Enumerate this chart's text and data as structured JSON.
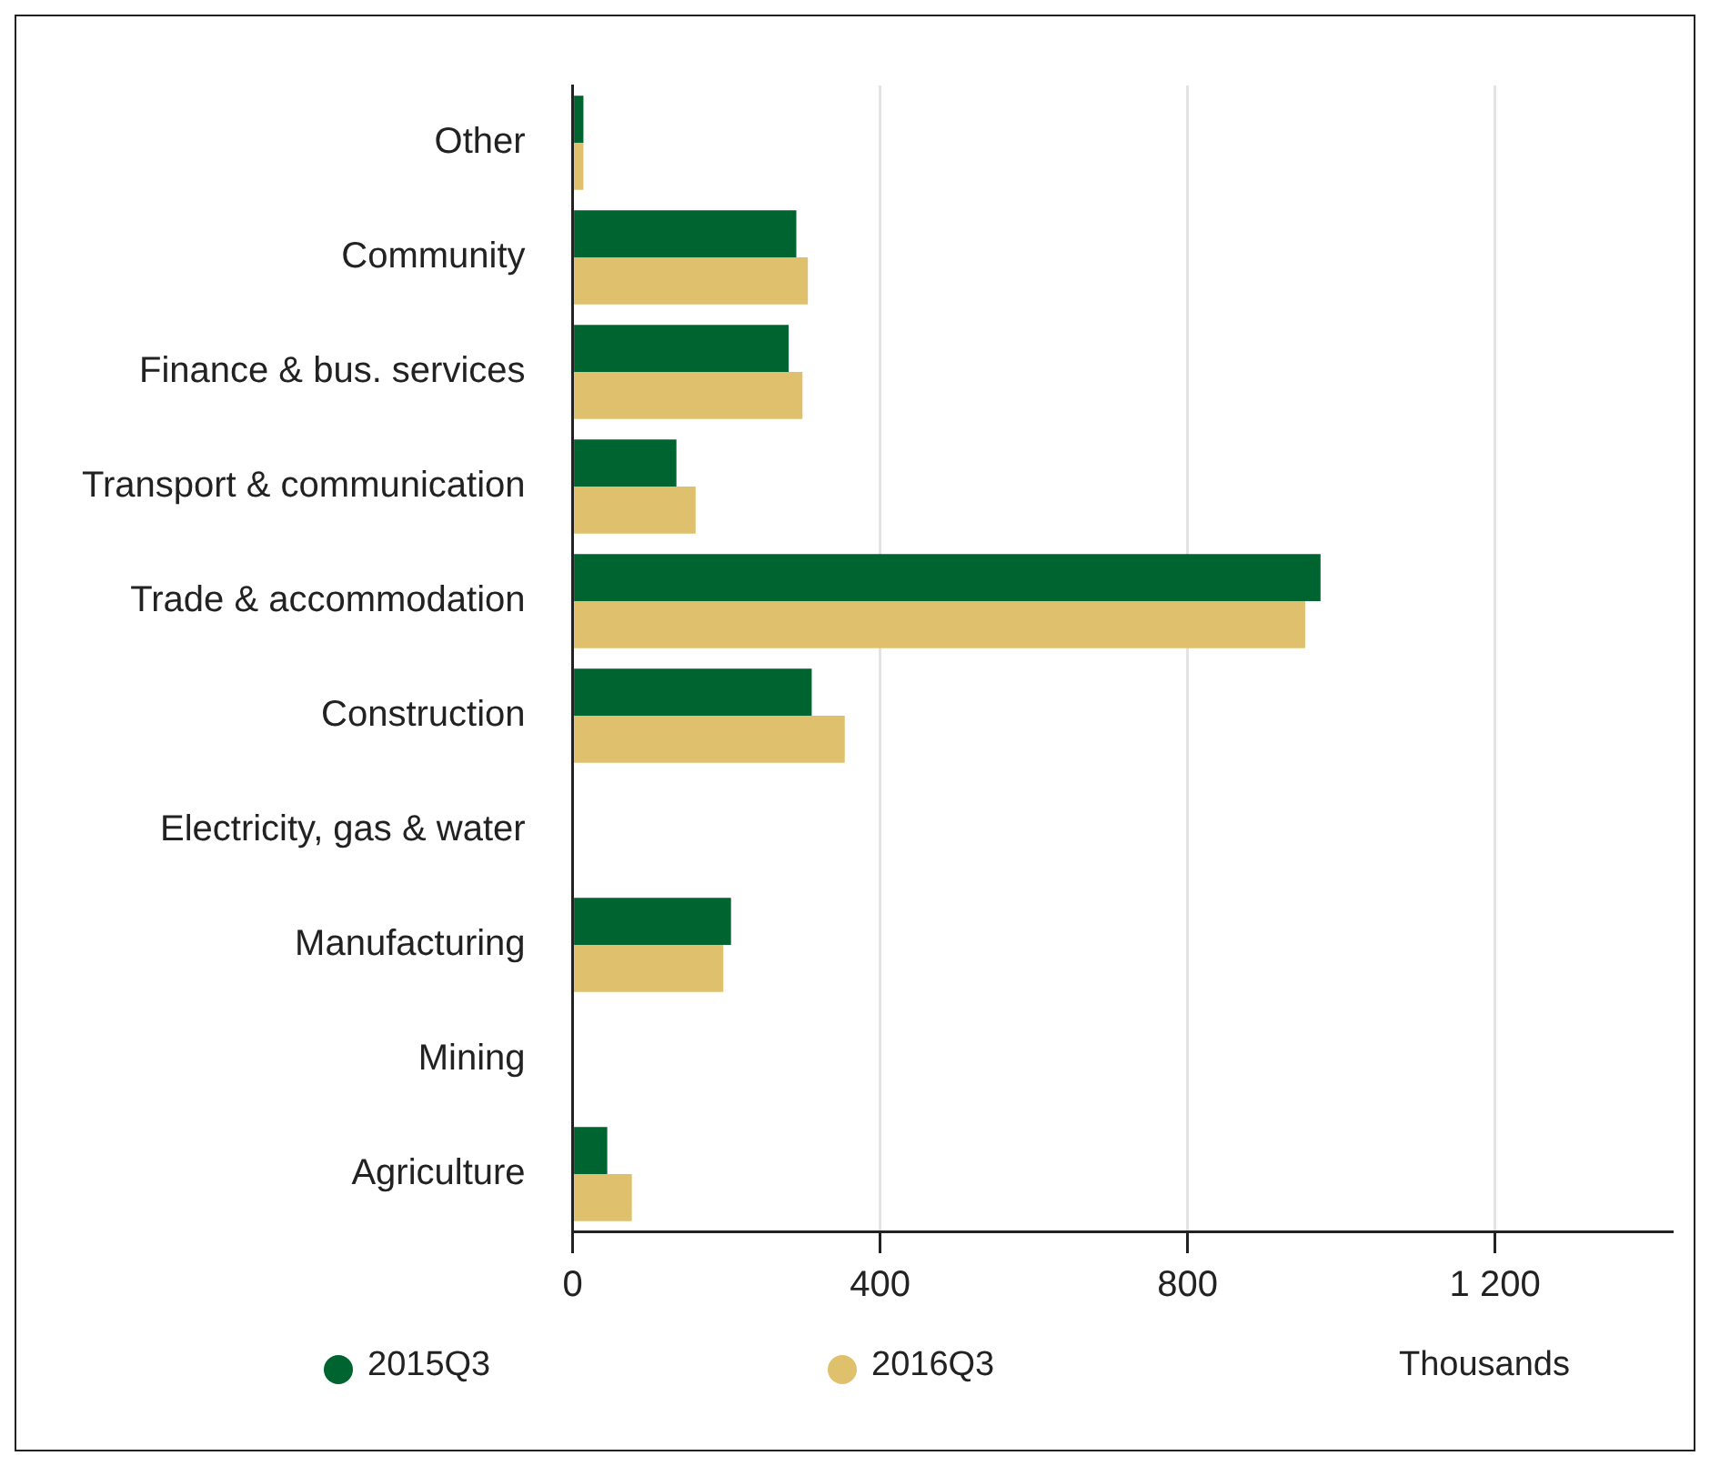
{
  "chart_data": {
    "type": "bar",
    "orientation": "horizontal",
    "categories": [
      "Other",
      "Community",
      "Finance & bus. services",
      "Transport & communication",
      "Trade & accommodation",
      "Construction",
      "Electricity, gas & water",
      "Manufacturing",
      "Mining",
      "Agriculture"
    ],
    "series": [
      {
        "name": "2015Q3",
        "color": "#006430",
        "values": [
          14,
          291,
          281,
          135,
          973,
          311,
          0,
          206,
          0,
          45
        ]
      },
      {
        "name": "2016Q3",
        "color": "#dfc16d",
        "values": [
          14,
          306,
          299,
          160,
          953,
          354,
          0,
          196,
          0,
          77
        ]
      }
    ],
    "xlim": [
      0,
      1430
    ],
    "xticks": [
      0,
      400,
      800,
      {
        "value": 1200,
        "label": "1 200"
      }
    ],
    "annotations": [
      "Thousands"
    ],
    "grid": "x",
    "legend": "bottom"
  }
}
